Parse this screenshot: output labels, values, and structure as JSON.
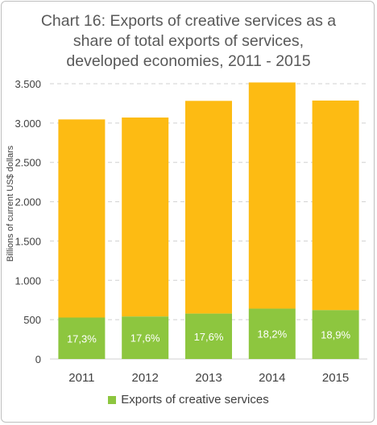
{
  "title_lines": [
    "Chart 16: Exports of creative services as a",
    "share of total exports of services,",
    "developed economies, 2011 - 2015"
  ],
  "colors": {
    "total": "#fdbb13",
    "creative": "#8dc63f",
    "grid": "#d0d0d0",
    "axis_text": "#404040",
    "label_text": "#ffffff"
  },
  "chart_data": {
    "type": "bar",
    "stacked": true,
    "categories": [
      "2011",
      "2012",
      "2013",
      "2014",
      "2015"
    ],
    "series": [
      {
        "name": "Exports of creative services",
        "values": [
          527,
          540,
          577,
          640,
          621
        ]
      },
      {
        "values": [
          2519,
          2530,
          2705,
          2876,
          2665
        ]
      }
    ],
    "totals": [
      3046,
      3070,
      3282,
      3516,
      3286
    ],
    "data_labels": [
      "17,3%",
      "17,6%",
      "17,6%",
      "18,2%",
      "18,9%"
    ],
    "ylabel": "Billions of current US$ dollars",
    "ylim": [
      0,
      3500
    ],
    "yticks": [
      0,
      500,
      1000,
      1500,
      2000,
      2500,
      3000,
      3500
    ],
    "ytick_labels": [
      "0",
      "500",
      "1.000",
      "1.500",
      "2.000",
      "2.500",
      "3.000",
      "3.500"
    ],
    "grid": true,
    "legend": [
      {
        "name": "Exports of creative services",
        "position": "bottom"
      }
    ]
  }
}
